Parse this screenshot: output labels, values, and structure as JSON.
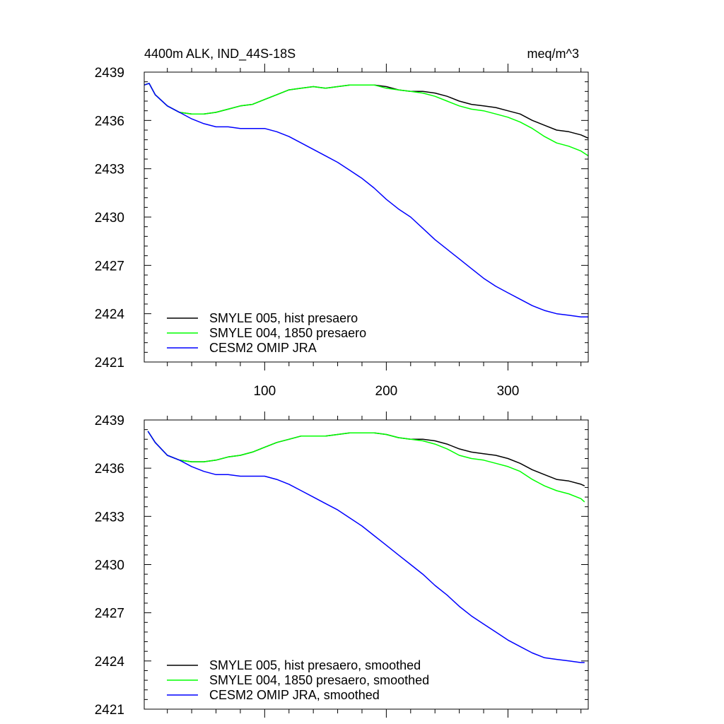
{
  "chart_data": [
    {
      "type": "line",
      "title_left": "4400m ALK, IND_44S-18S",
      "title_right": "meq/m^3",
      "xlim": [
        1,
        366
      ],
      "ylim": [
        2421,
        2439
      ],
      "xticks": [
        100,
        200,
        300
      ],
      "xtick_labels": [
        "100",
        "200",
        "300"
      ],
      "yticks": [
        2421,
        2424,
        2427,
        2430,
        2433,
        2436,
        2439
      ],
      "ytick_labels": [
        "2421",
        "2424",
        "2427",
        "2430",
        "2433",
        "2436",
        "2439"
      ],
      "legend_position": "bottom-left",
      "series": [
        {
          "name": "SMYLE 005, hist presaero",
          "color": "#000000",
          "x": [
            1,
            5,
            10,
            20,
            30,
            40,
            50,
            60,
            70,
            80,
            90,
            100,
            110,
            120,
            130,
            140,
            150,
            160,
            170,
            180,
            190,
            200,
            210,
            220,
            230,
            240,
            250,
            260,
            270,
            280,
            290,
            300,
            310,
            320,
            330,
            340,
            350,
            360,
            366
          ],
          "y": [
            2438.2,
            2438.3,
            2437.6,
            2436.9,
            2436.5,
            2436.4,
            2436.4,
            2436.5,
            2436.7,
            2436.9,
            2437.0,
            2437.3,
            2437.6,
            2437.9,
            2438.0,
            2438.1,
            2438.0,
            2438.1,
            2438.2,
            2438.2,
            2438.2,
            2438.1,
            2437.9,
            2437.8,
            2437.8,
            2437.7,
            2437.5,
            2437.2,
            2437.0,
            2436.9,
            2436.8,
            2436.6,
            2436.4,
            2436.0,
            2435.7,
            2435.4,
            2435.3,
            2435.1,
            2434.9
          ]
        },
        {
          "name": "SMYLE 004, 1850 presaero",
          "color": "#00ff00",
          "x": [
            1,
            5,
            10,
            20,
            30,
            40,
            50,
            60,
            70,
            80,
            90,
            100,
            110,
            120,
            130,
            140,
            150,
            160,
            170,
            180,
            190,
            200,
            210,
            220,
            230,
            240,
            250,
            260,
            270,
            280,
            290,
            300,
            310,
            320,
            330,
            340,
            350,
            360,
            366
          ],
          "y": [
            2438.2,
            2438.3,
            2437.6,
            2436.9,
            2436.5,
            2436.4,
            2436.4,
            2436.5,
            2436.7,
            2436.9,
            2437.0,
            2437.3,
            2437.6,
            2437.9,
            2438.0,
            2438.1,
            2438.0,
            2438.1,
            2438.2,
            2438.2,
            2438.2,
            2438.0,
            2437.9,
            2437.8,
            2437.7,
            2437.5,
            2437.2,
            2436.9,
            2436.7,
            2436.6,
            2436.4,
            2436.2,
            2435.9,
            2435.5,
            2435.0,
            2434.6,
            2434.4,
            2434.1,
            2433.8
          ]
        },
        {
          "name": "CESM2 OMIP JRA",
          "color": "#0000ff",
          "x": [
            1,
            5,
            10,
            20,
            30,
            40,
            50,
            60,
            70,
            80,
            90,
            100,
            110,
            120,
            130,
            140,
            150,
            160,
            170,
            180,
            190,
            200,
            210,
            220,
            230,
            240,
            250,
            260,
            270,
            280,
            290,
            300,
            310,
            320,
            330,
            340,
            350,
            360,
            366
          ],
          "y": [
            2438.2,
            2438.3,
            2437.6,
            2436.9,
            2436.5,
            2436.1,
            2435.8,
            2435.6,
            2435.6,
            2435.5,
            2435.5,
            2435.5,
            2435.3,
            2435.0,
            2434.6,
            2434.2,
            2433.8,
            2433.4,
            2432.9,
            2432.4,
            2431.8,
            2431.1,
            2430.5,
            2430.0,
            2429.3,
            2428.6,
            2428.0,
            2427.4,
            2426.8,
            2426.2,
            2425.7,
            2425.3,
            2424.9,
            2424.5,
            2424.2,
            2424.0,
            2423.9,
            2423.8,
            2423.8
          ]
        }
      ]
    },
    {
      "type": "line",
      "xlim": [
        1,
        366
      ],
      "ylim": [
        2421,
        2439
      ],
      "xticks": [
        100,
        200,
        300
      ],
      "yticks": [
        2421,
        2424,
        2427,
        2430,
        2433,
        2436,
        2439
      ],
      "ytick_labels": [
        "2421",
        "2424",
        "2427",
        "2430",
        "2433",
        "2436",
        "2439"
      ],
      "legend_position": "bottom-left",
      "series": [
        {
          "name": "SMYLE 005, hist presaero, smoothed",
          "color": "#000000",
          "x": [
            4,
            10,
            20,
            30,
            40,
            50,
            60,
            70,
            80,
            90,
            100,
            110,
            120,
            130,
            140,
            150,
            160,
            170,
            180,
            190,
            200,
            210,
            220,
            230,
            240,
            250,
            260,
            270,
            280,
            290,
            300,
            310,
            320,
            330,
            340,
            350,
            360,
            363
          ],
          "y": [
            2438.3,
            2437.6,
            2436.8,
            2436.5,
            2436.4,
            2436.4,
            2436.5,
            2436.7,
            2436.8,
            2437.0,
            2437.3,
            2437.6,
            2437.8,
            2438.0,
            2438.0,
            2438.0,
            2438.1,
            2438.2,
            2438.2,
            2438.2,
            2438.1,
            2437.9,
            2437.8,
            2437.8,
            2437.7,
            2437.5,
            2437.2,
            2437.0,
            2436.9,
            2436.8,
            2436.6,
            2436.3,
            2435.9,
            2435.6,
            2435.3,
            2435.2,
            2435.0,
            2434.9
          ]
        },
        {
          "name": "SMYLE 004, 1850 presaero, smoothed",
          "color": "#00ff00",
          "x": [
            4,
            10,
            20,
            30,
            40,
            50,
            60,
            70,
            80,
            90,
            100,
            110,
            120,
            130,
            140,
            150,
            160,
            170,
            180,
            190,
            200,
            210,
            220,
            230,
            240,
            250,
            260,
            270,
            280,
            290,
            300,
            310,
            320,
            330,
            340,
            350,
            360,
            363
          ],
          "y": [
            2438.3,
            2437.6,
            2436.8,
            2436.5,
            2436.4,
            2436.4,
            2436.5,
            2436.7,
            2436.8,
            2437.0,
            2437.3,
            2437.6,
            2437.8,
            2438.0,
            2438.0,
            2438.0,
            2438.1,
            2438.2,
            2438.2,
            2438.2,
            2438.1,
            2437.9,
            2437.8,
            2437.7,
            2437.5,
            2437.2,
            2436.8,
            2436.6,
            2436.5,
            2436.3,
            2436.1,
            2435.8,
            2435.3,
            2434.9,
            2434.6,
            2434.4,
            2434.1,
            2433.9
          ]
        },
        {
          "name": "CESM2 OMIP JRA, smoothed",
          "color": "#0000ff",
          "x": [
            4,
            10,
            20,
            30,
            40,
            50,
            60,
            70,
            80,
            90,
            100,
            110,
            120,
            130,
            140,
            150,
            160,
            170,
            180,
            190,
            200,
            210,
            220,
            230,
            240,
            250,
            260,
            270,
            280,
            290,
            300,
            310,
            320,
            330,
            340,
            350,
            360,
            363
          ],
          "y": [
            2438.3,
            2437.6,
            2436.8,
            2436.5,
            2436.1,
            2435.8,
            2435.6,
            2435.6,
            2435.5,
            2435.5,
            2435.5,
            2435.3,
            2435.0,
            2434.6,
            2434.2,
            2433.8,
            2433.4,
            2432.9,
            2432.4,
            2431.8,
            2431.2,
            2430.6,
            2430.0,
            2429.4,
            2428.7,
            2428.1,
            2427.4,
            2426.8,
            2426.3,
            2425.8,
            2425.3,
            2424.9,
            2424.5,
            2424.2,
            2424.1,
            2424.0,
            2423.9,
            2423.9
          ]
        }
      ]
    }
  ]
}
